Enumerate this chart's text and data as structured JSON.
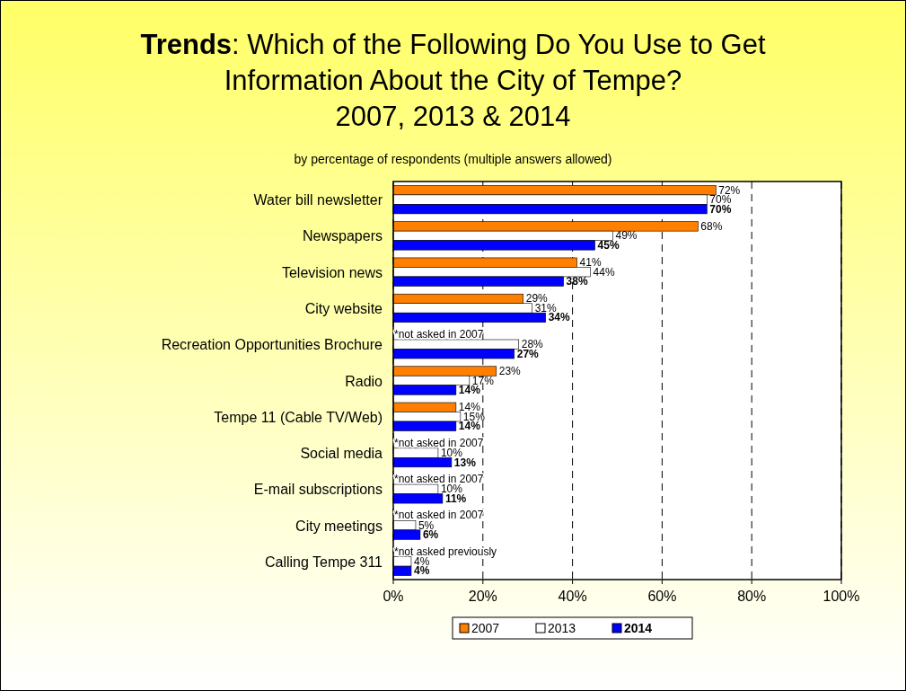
{
  "chart_data": {
    "type": "bar",
    "orientation": "horizontal",
    "title": "Trends: Which of the Following Do You Use to Get\nInformation About the City of Tempe?\n2007, 2013 & 2014",
    "subtitle": "by percentage of respondents (multiple answers allowed)",
    "categories": [
      "Water bill newsletter",
      "Newspapers",
      "Television news",
      "City website",
      "Recreation Opportunities Brochure",
      "Radio",
      "Tempe 11 (Cable TV/Web)",
      "Social media",
      "E-mail subscriptions",
      "City meetings",
      "Calling Tempe 311"
    ],
    "series": [
      {
        "name": "2007",
        "color": "#ff7f00",
        "values": [
          72,
          68,
          41,
          29,
          null,
          23,
          14,
          null,
          null,
          null,
          null
        ],
        "value_labels": [
          "72%",
          "68%",
          "41%",
          "29%",
          null,
          "23%",
          "14%",
          null,
          null,
          null,
          null
        ]
      },
      {
        "name": "2013",
        "color": "#ffffff",
        "values": [
          70,
          49,
          44,
          31,
          28,
          17,
          15,
          10,
          10,
          5,
          4
        ],
        "value_labels": [
          "70%",
          "49%",
          "44%",
          "31%",
          "28%",
          "17%",
          "15%",
          "10%",
          "10%",
          "5%",
          "4%"
        ]
      },
      {
        "name": "2014",
        "color": "#0000ff",
        "values": [
          70,
          45,
          38,
          34,
          27,
          14,
          14,
          13,
          11,
          6,
          4
        ],
        "value_labels": [
          "70%",
          "45%",
          "38%",
          "34%",
          "27%",
          "14%",
          "14%",
          "13%",
          "11%",
          "6%",
          "4%"
        ]
      }
    ],
    "xlim": [
      0,
      100
    ],
    "xticks": [
      {
        "value": 0,
        "label": "0%"
      },
      {
        "value": 20,
        "label": "20%"
      },
      {
        "value": 40,
        "label": "40%"
      },
      {
        "value": 60,
        "label": "60%"
      },
      {
        "value": 80,
        "label": "80%"
      },
      {
        "value": 100,
        "label": "100%"
      }
    ],
    "grid": "x",
    "legend": "bottom",
    "annotations": [
      "*not asked in 2007",
      "*not asked in 2007",
      "*not asked in 2007",
      "*not asked in 2007",
      "*not asked previously"
    ]
  }
}
